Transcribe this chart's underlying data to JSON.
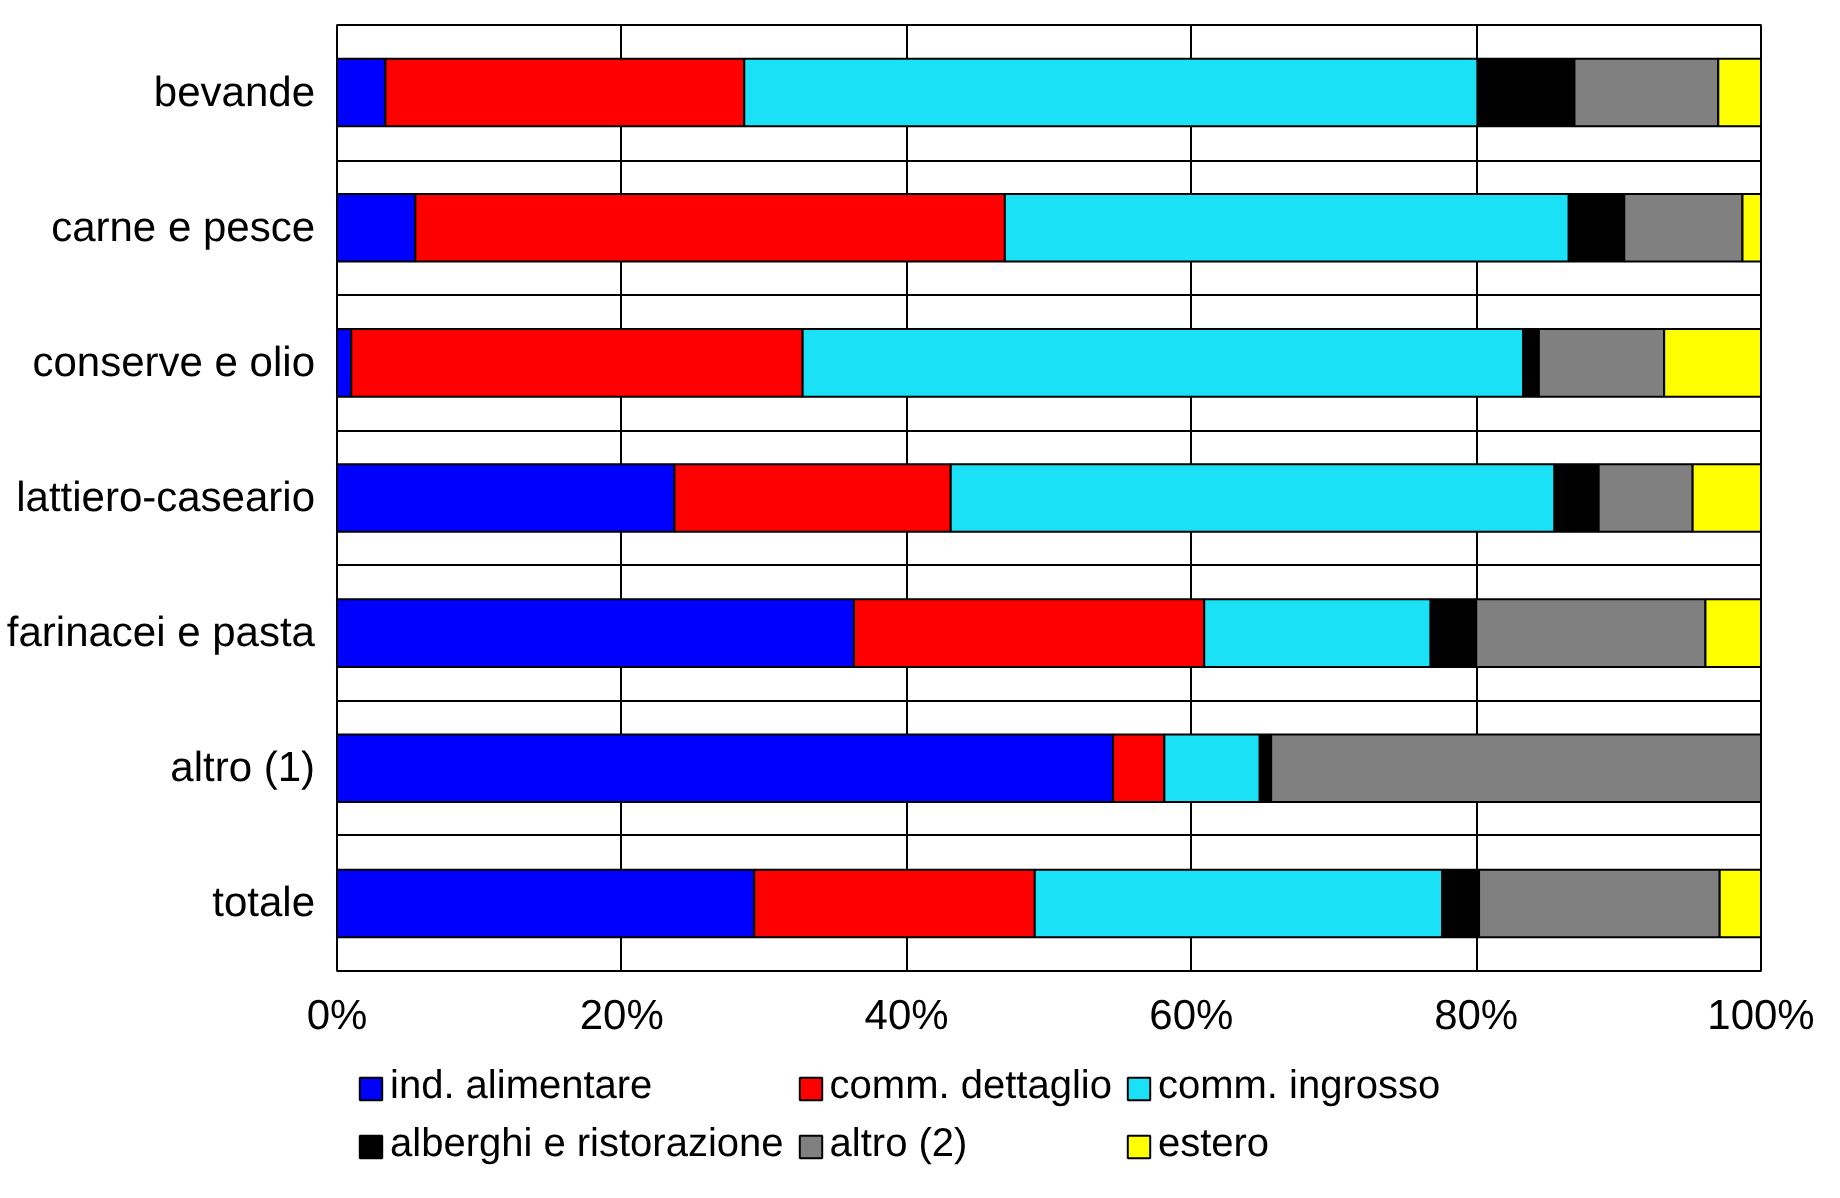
{
  "chart_data": {
    "type": "bar",
    "orientation": "horizontal",
    "stacked": true,
    "categories": [
      "bevande",
      "carne e pesce",
      "conserve e olio",
      "lattiero-caseario",
      "farinacei e pasta",
      "altro (1)",
      "totale"
    ],
    "series": [
      {
        "name": "ind. alimentare",
        "color": "#0000ff",
        "values": [
          3.4,
          5.5,
          1.0,
          23.7,
          36.3,
          54.5,
          29.3
        ]
      },
      {
        "name": "comm. dettaglio",
        "color": "#ff0000",
        "values": [
          25.2,
          41.4,
          31.7,
          19.4,
          24.6,
          3.6,
          19.7
        ]
      },
      {
        "name": "comm. ingrosso",
        "color": "#1ae1f5",
        "values": [
          51.5,
          39.6,
          50.6,
          42.4,
          15.9,
          6.7,
          28.6
        ]
      },
      {
        "name": "alberghi e ristorazione",
        "color": "#000000",
        "values": [
          6.8,
          3.9,
          1.1,
          3.1,
          3.2,
          0.8,
          2.6
        ]
      },
      {
        "name": "altro (2)",
        "color": "#808080",
        "values": [
          10.1,
          8.3,
          8.8,
          6.6,
          16.1,
          34.4,
          16.9
        ]
      },
      {
        "name": "estero",
        "color": "#ffff00",
        "values": [
          3.0,
          1.3,
          6.8,
          4.8,
          3.9,
          null,
          2.9
        ]
      }
    ],
    "xlim": [
      0,
      100
    ],
    "xticks": [
      {
        "value": 0,
        "label": "0%"
      },
      {
        "value": 20,
        "label": "20%"
      },
      {
        "value": 40,
        "label": "40%"
      },
      {
        "value": 60,
        "label": "60%"
      },
      {
        "value": 80,
        "label": "80%"
      },
      {
        "value": 100,
        "label": "100%"
      }
    ],
    "grid": true,
    "legend": "bottom"
  }
}
